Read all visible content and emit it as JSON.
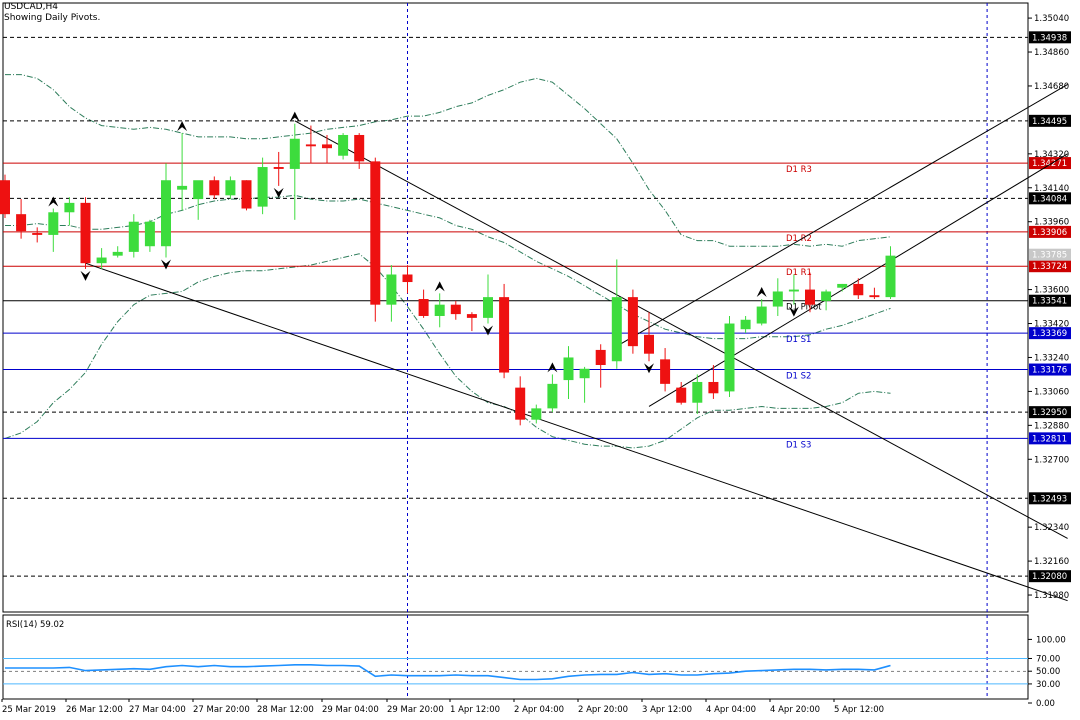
{
  "header": {
    "symbol": "USDCAD,H4",
    "subtitle": "Showing Daily Pivots."
  },
  "colors": {
    "bull": "#3ddc3d",
    "bear": "#ee1111",
    "pivot_resistance": "#cc0000",
    "pivot_support": "#0000cc",
    "dashed_level": "#000000",
    "band": "#2e7d5b",
    "rsi_line": "#1e90ff",
    "rsi_level": "#4db8ff",
    "vgrid": "#0000cc",
    "price_label_bg": "#000000",
    "resistance_label_bg": "#cc0000",
    "support_label_bg": "#0000cc"
  },
  "chart_data": {
    "type": "candlestick",
    "title": "USDCAD,H4",
    "subtitle": "Showing Daily Pivots.",
    "ylim": [
      1.3189,
      1.3512
    ],
    "price_ticks": [
      "1.35040",
      "1.34860",
      "1.34680",
      "1.34320",
      "1.34140",
      "1.33960",
      "1.33600",
      "1.33420",
      "1.33240",
      "1.33060",
      "1.32880",
      "1.32700",
      "1.32340",
      "1.32160",
      "1.31980"
    ],
    "x_labels": [
      "25 Mar 2019",
      "26 Mar 12:00",
      "27 Mar 04:00",
      "27 Mar 20:00",
      "28 Mar 12:00",
      "29 Mar 04:00",
      "29 Mar 20:00",
      "1 Apr 12:00",
      "2 Apr 04:00",
      "2 Apr 20:00",
      "3 Apr 12:00",
      "4 Apr 04:00",
      "4 Apr 20:00",
      "5 Apr 12:00"
    ],
    "candles": [
      {
        "o": 1.3418,
        "h": 1.3421,
        "l": 1.3398,
        "c": 1.34
      },
      {
        "o": 1.34,
        "h": 1.3408,
        "l": 1.3387,
        "c": 1.3391
      },
      {
        "o": 1.339,
        "h": 1.3393,
        "l": 1.3385,
        "c": 1.3389
      },
      {
        "o": 1.3389,
        "h": 1.3403,
        "l": 1.338,
        "c": 1.3401
      },
      {
        "o": 1.3401,
        "h": 1.3409,
        "l": 1.3394,
        "c": 1.3406
      },
      {
        "o": 1.3406,
        "h": 1.3409,
        "l": 1.3371,
        "c": 1.3374
      },
      {
        "o": 1.3374,
        "h": 1.3382,
        "l": 1.3371,
        "c": 1.3377
      },
      {
        "o": 1.3378,
        "h": 1.3383,
        "l": 1.3377,
        "c": 1.338
      },
      {
        "o": 1.338,
        "h": 1.34,
        "l": 1.3377,
        "c": 1.3396
      },
      {
        "o": 1.3383,
        "h": 1.3397,
        "l": 1.338,
        "c": 1.3396
      },
      {
        "o": 1.3383,
        "h": 1.3427,
        "l": 1.3377,
        "c": 1.3418
      },
      {
        "o": 1.3413,
        "h": 1.3443,
        "l": 1.3402,
        "c": 1.3415
      },
      {
        "o": 1.3408,
        "h": 1.3417,
        "l": 1.3397,
        "c": 1.3418
      },
      {
        "o": 1.3418,
        "h": 1.342,
        "l": 1.3408,
        "c": 1.341
      },
      {
        "o": 1.341,
        "h": 1.342,
        "l": 1.3408,
        "c": 1.3418
      },
      {
        "o": 1.3418,
        "h": 1.3418,
        "l": 1.3402,
        "c": 1.3403
      },
      {
        "o": 1.3404,
        "h": 1.343,
        "l": 1.34,
        "c": 1.3425
      },
      {
        "o": 1.3425,
        "h": 1.3433,
        "l": 1.3415,
        "c": 1.3424
      },
      {
        "o": 1.3424,
        "h": 1.3448,
        "l": 1.3397,
        "c": 1.344
      },
      {
        "o": 1.3437,
        "h": 1.3447,
        "l": 1.3427,
        "c": 1.3436
      },
      {
        "o": 1.3437,
        "h": 1.3442,
        "l": 1.3427,
        "c": 1.3435
      },
      {
        "o": 1.3431,
        "h": 1.3443,
        "l": 1.3429,
        "c": 1.3442
      },
      {
        "o": 1.3442,
        "h": 1.3443,
        "l": 1.3424,
        "c": 1.3428
      },
      {
        "o": 1.3428,
        "h": 1.343,
        "l": 1.3343,
        "c": 1.3352
      },
      {
        "o": 1.3352,
        "h": 1.3373,
        "l": 1.3343,
        "c": 1.3368
      },
      {
        "o": 1.3368,
        "h": 1.3373,
        "l": 1.3358,
        "c": 1.3364
      },
      {
        "o": 1.3355,
        "h": 1.336,
        "l": 1.3345,
        "c": 1.3346
      },
      {
        "o": 1.3346,
        "h": 1.3358,
        "l": 1.334,
        "c": 1.3352
      },
      {
        "o": 1.3352,
        "h": 1.3354,
        "l": 1.3344,
        "c": 1.3347
      },
      {
        "o": 1.3347,
        "h": 1.3348,
        "l": 1.3338,
        "c": 1.3345
      },
      {
        "o": 1.3345,
        "h": 1.3368,
        "l": 1.3342,
        "c": 1.3356
      },
      {
        "o": 1.3356,
        "h": 1.3363,
        "l": 1.3313,
        "c": 1.3316
      },
      {
        "o": 1.3308,
        "h": 1.3314,
        "l": 1.3288,
        "c": 1.3291
      },
      {
        "o": 1.3291,
        "h": 1.3299,
        "l": 1.3289,
        "c": 1.3297
      },
      {
        "o": 1.3297,
        "h": 1.3315,
        "l": 1.3295,
        "c": 1.331
      },
      {
        "o": 1.3312,
        "h": 1.333,
        "l": 1.3302,
        "c": 1.3324
      },
      {
        "o": 1.3313,
        "h": 1.3319,
        "l": 1.33,
        "c": 1.3318
      },
      {
        "o": 1.3328,
        "h": 1.3331,
        "l": 1.3308,
        "c": 1.332
      },
      {
        "o": 1.3322,
        "h": 1.3376,
        "l": 1.3318,
        "c": 1.3356
      },
      {
        "o": 1.3356,
        "h": 1.336,
        "l": 1.3326,
        "c": 1.333
      },
      {
        "o": 1.3336,
        "h": 1.3348,
        "l": 1.3322,
        "c": 1.3326
      },
      {
        "o": 1.3323,
        "h": 1.3329,
        "l": 1.3306,
        "c": 1.331
      },
      {
        "o": 1.3308,
        "h": 1.3311,
        "l": 1.3299,
        "c": 1.33
      },
      {
        "o": 1.33,
        "h": 1.3315,
        "l": 1.3294,
        "c": 1.3311
      },
      {
        "o": 1.3311,
        "h": 1.332,
        "l": 1.3302,
        "c": 1.3305
      },
      {
        "o": 1.3306,
        "h": 1.3346,
        "l": 1.3303,
        "c": 1.3342
      },
      {
        "o": 1.3339,
        "h": 1.3346,
        "l": 1.3337,
        "c": 1.3344
      },
      {
        "o": 1.3342,
        "h": 1.3355,
        "l": 1.3341,
        "c": 1.3351
      },
      {
        "o": 1.3351,
        "h": 1.3366,
        "l": 1.3346,
        "c": 1.3359
      },
      {
        "o": 1.3359,
        "h": 1.3368,
        "l": 1.3352,
        "c": 1.336
      },
      {
        "o": 1.336,
        "h": 1.3369,
        "l": 1.3348,
        "c": 1.3352
      },
      {
        "o": 1.3354,
        "h": 1.336,
        "l": 1.3349,
        "c": 1.3359
      },
      {
        "o": 1.3361,
        "h": 1.3363,
        "l": 1.3359,
        "c": 1.3363
      },
      {
        "o": 1.3363,
        "h": 1.3366,
        "l": 1.3355,
        "c": 1.3357
      },
      {
        "o": 1.3357,
        "h": 1.3361,
        "l": 1.3355,
        "c": 1.3356
      },
      {
        "o": 1.3356,
        "h": 1.3383,
        "l": 1.3355,
        "c": 1.3378
      }
    ],
    "upper_band": [
      1.3474,
      1.3474,
      1.3472,
      1.3466,
      1.3457,
      1.3451,
      1.3447,
      1.3446,
      1.3445,
      1.3446,
      1.3445,
      1.3443,
      1.3441,
      1.3441,
      1.3441,
      1.344,
      1.344,
      1.3441,
      1.3442,
      1.3443,
      1.3445,
      1.3446,
      1.3447,
      1.3449,
      1.345,
      1.3452,
      1.3452,
      1.3454,
      1.3457,
      1.3459,
      1.3463,
      1.3466,
      1.347,
      1.3472,
      1.347,
      1.3463,
      1.3456,
      1.3448,
      1.344,
      1.3427,
      1.3413,
      1.3402,
      1.3389,
      1.3386,
      1.3386,
      1.3383,
      1.3383,
      1.3383,
      1.3383,
      1.3384,
      1.3383,
      1.3384,
      1.3383,
      1.3386,
      1.3387,
      1.3388
    ],
    "middle_band": [
      1.3394,
      1.3394,
      1.3395,
      1.3394,
      1.3394,
      1.3392,
      1.3392,
      1.3393,
      1.3394,
      1.3396,
      1.34,
      1.3402,
      1.3405,
      1.3407,
      1.3408,
      1.3408,
      1.3409,
      1.3409,
      1.341,
      1.3408,
      1.3407,
      1.3407,
      1.3408,
      1.3406,
      1.3404,
      1.3402,
      1.34,
      1.3398,
      1.3394,
      1.3392,
      1.3388,
      1.3385,
      1.338,
      1.3375,
      1.3371,
      1.3367,
      1.3362,
      1.3357,
      1.3352,
      1.3347,
      1.3343,
      1.3339,
      1.3337,
      1.3335,
      1.3334,
      1.3334,
      1.3334,
      1.3335,
      1.3335,
      1.3335,
      1.3336,
      1.3339,
      1.3341,
      1.3344,
      1.3347,
      1.335
    ],
    "lower_band": [
      1.3281,
      1.3284,
      1.329,
      1.33,
      1.3307,
      1.3316,
      1.3331,
      1.3343,
      1.3352,
      1.3357,
      1.3358,
      1.3359,
      1.3364,
      1.3367,
      1.3369,
      1.337,
      1.337,
      1.3371,
      1.3372,
      1.3373,
      1.3375,
      1.3377,
      1.3379,
      1.3372,
      1.3362,
      1.3351,
      1.3339,
      1.3326,
      1.3314,
      1.3306,
      1.33,
      1.3298,
      1.3294,
      1.3287,
      1.3282,
      1.328,
      1.3278,
      1.3277,
      1.3277,
      1.3276,
      1.3277,
      1.328,
      1.3286,
      1.3292,
      1.3296,
      1.3296,
      1.3297,
      1.3298,
      1.3297,
      1.3297,
      1.3297,
      1.3298,
      1.33,
      1.3305,
      1.3306,
      1.3305
    ],
    "horizontal_levels": [
      {
        "price": 1.34938,
        "label": "1.34938",
        "kind": "dashed"
      },
      {
        "price": 1.34495,
        "label": "1.34495",
        "kind": "dashed"
      },
      {
        "price": 1.34271,
        "label": "1.34271",
        "kind": "resistance",
        "name": "D1  R3"
      },
      {
        "price": 1.34084,
        "label": "1.34084",
        "kind": "dashed"
      },
      {
        "price": 1.33906,
        "label": "1.33906",
        "kind": "resistance",
        "name": "D1  R2"
      },
      {
        "price": 1.33724,
        "label": "1.33724",
        "kind": "resistance",
        "name": "D1  R1"
      },
      {
        "price": 1.33541,
        "label": "1.33541",
        "kind": "pivot",
        "name": "D1  Pivot"
      },
      {
        "price": 1.33369,
        "label": "1.33369",
        "kind": "support",
        "name": "D1  S1"
      },
      {
        "price": 1.33176,
        "label": "1.33176",
        "kind": "support",
        "name": "D1  S2"
      },
      {
        "price": 1.3295,
        "label": "1.32950",
        "kind": "dashed"
      },
      {
        "price": 1.32811,
        "label": "1.32811",
        "kind": "support",
        "name": "D1  S3"
      },
      {
        "price": 1.32493,
        "label": "1.32493",
        "kind": "dashed"
      },
      {
        "price": 1.3208,
        "label": "1.32080",
        "kind": "dashed"
      }
    ],
    "current_price": {
      "price": 1.33785,
      "label": "1.33785"
    },
    "trendlines": [
      {
        "from": [
          18,
          1.34495
        ],
        "to": [
          66,
          1.3228
        ]
      },
      {
        "from": [
          5,
          1.3374
        ],
        "to": [
          66,
          1.3195
        ]
      },
      {
        "from": [
          38,
          1.333
        ],
        "to": [
          66,
          1.34688
        ]
      },
      {
        "from": [
          40,
          1.3298
        ],
        "to": [
          66,
          1.3432
        ]
      }
    ],
    "fractal_up": [
      3,
      11,
      18,
      27,
      34,
      47
    ],
    "fractal_down": [
      5,
      10,
      17,
      30,
      40,
      49
    ],
    "vertical_markers": [
      25,
      61
    ],
    "rsi": {
      "label": "RSI(14) 59.02",
      "ylim": [
        0,
        100
      ],
      "levels": [
        70,
        30
      ],
      "ticks": [
        "100.00",
        "70.00",
        "50.00",
        "30.00",
        "0.00"
      ],
      "values": [
        55,
        55,
        55,
        55,
        56,
        51,
        52,
        53,
        54,
        53,
        57,
        59,
        57,
        59,
        57,
        57,
        58,
        59,
        60,
        60,
        59,
        59,
        58,
        42,
        44,
        43,
        43,
        43,
        44,
        43,
        43,
        40,
        37,
        37,
        38,
        42,
        44,
        45,
        45,
        48,
        45,
        46,
        44,
        44,
        46,
        47,
        50,
        51,
        52,
        53,
        53,
        52,
        53,
        53,
        52,
        59
      ]
    }
  }
}
